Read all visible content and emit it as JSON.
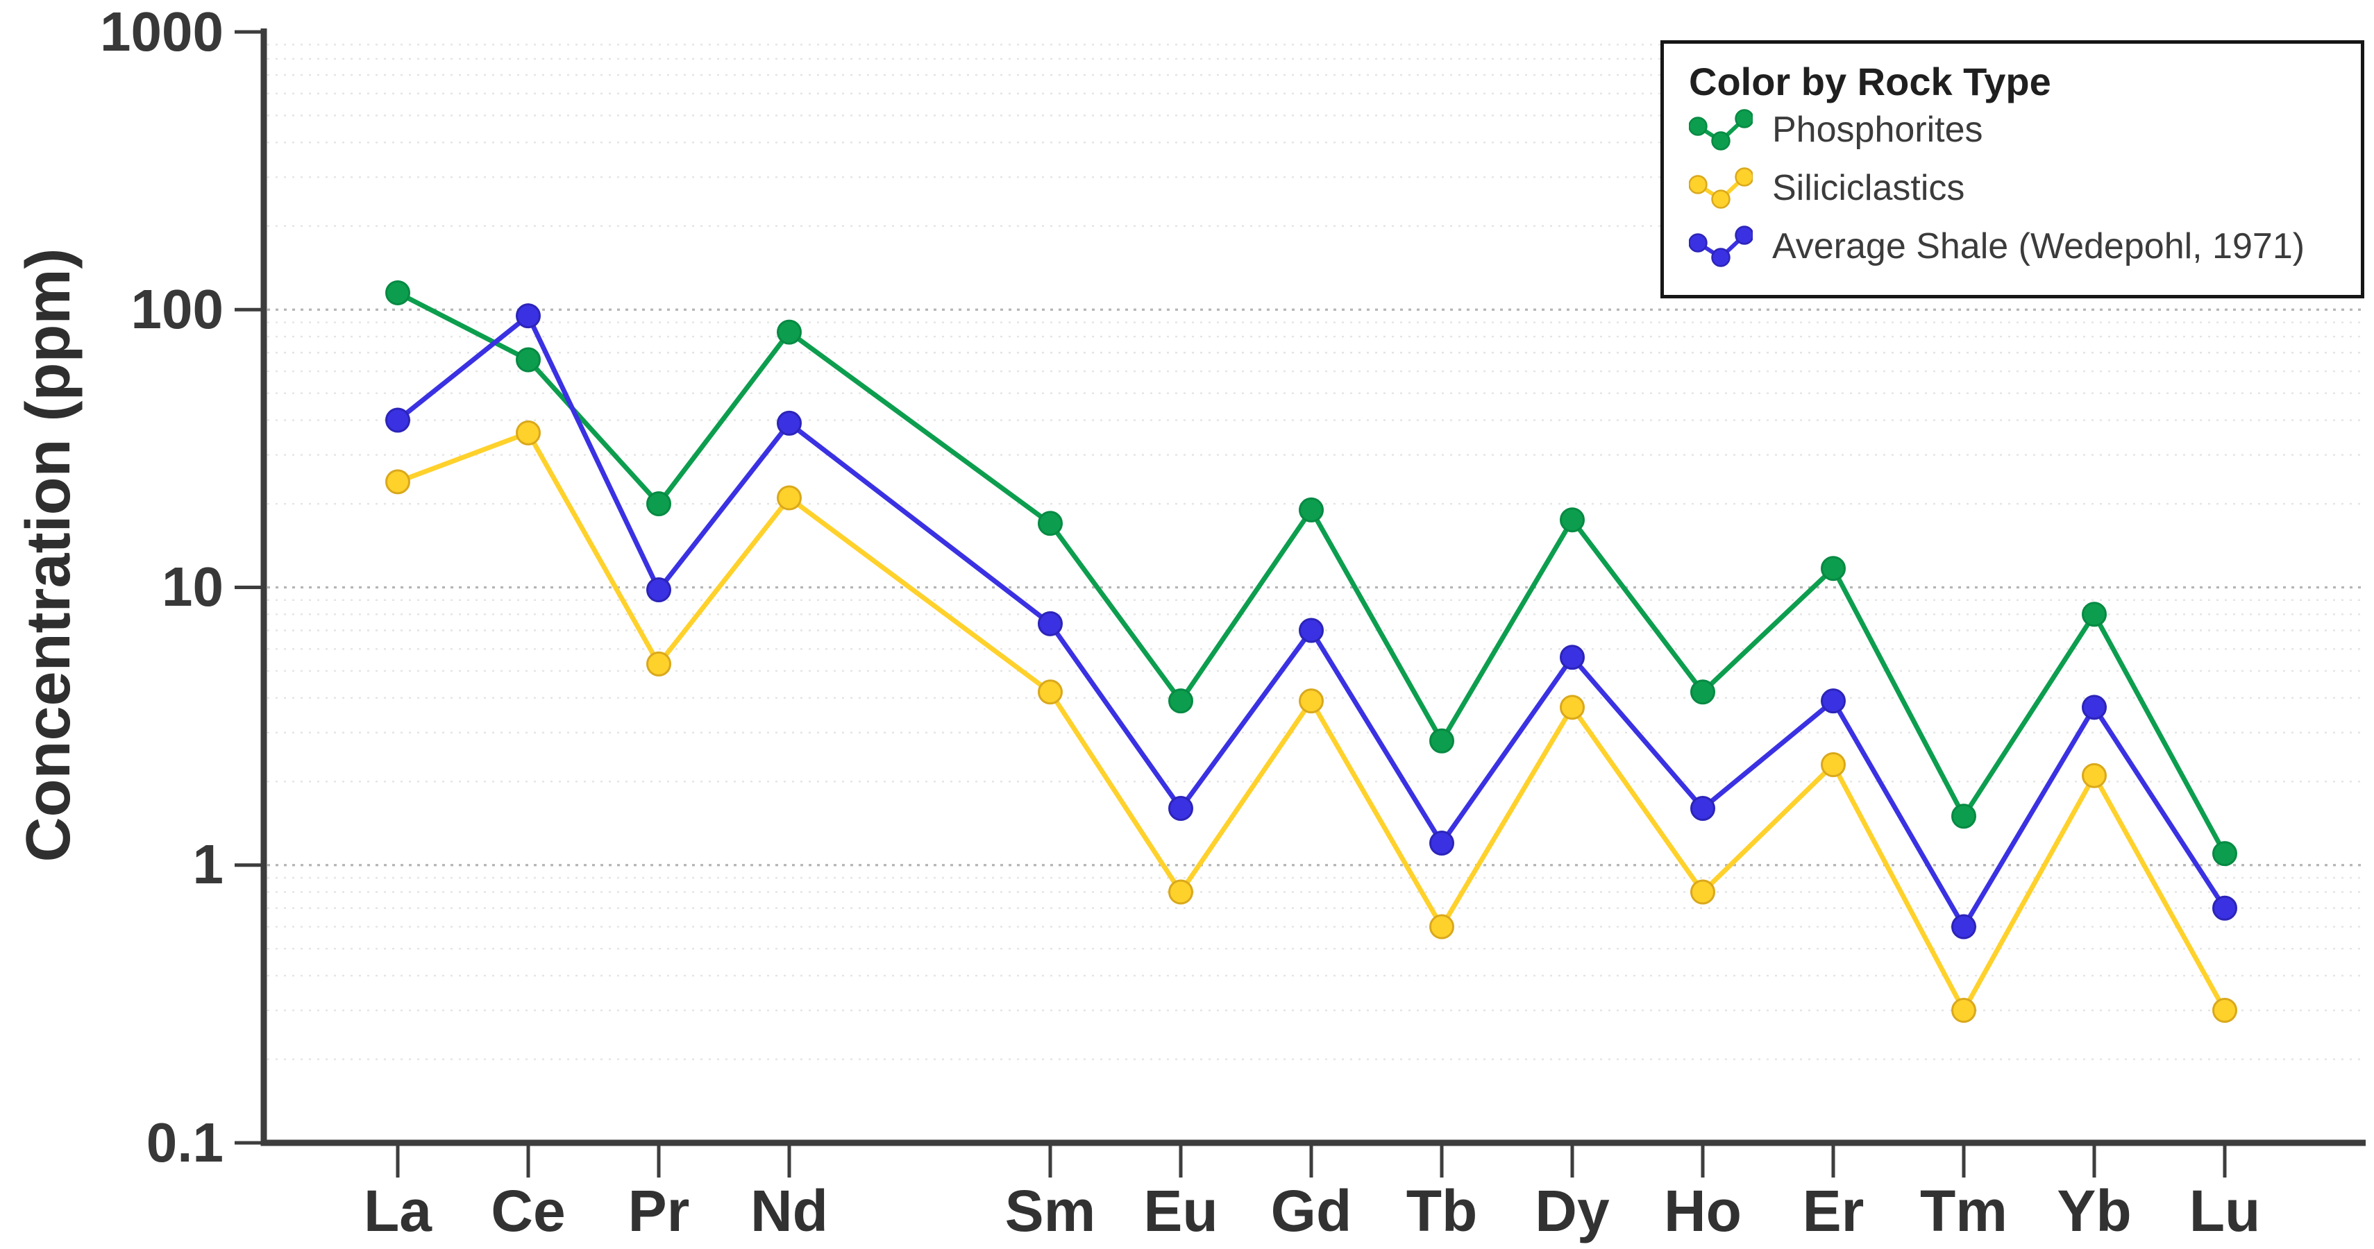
{
  "chart_data": {
    "type": "line",
    "title": "",
    "x_axis": {
      "categories": [
        "La",
        "Ce",
        "Pr",
        "Nd",
        "Sm",
        "Eu",
        "Gd",
        "Tb",
        "Dy",
        "Ho",
        "Er",
        "Tm",
        "Yb",
        "Lu"
      ],
      "slots": [
        0,
        1,
        2,
        3,
        5,
        6,
        7,
        8,
        9,
        10,
        11,
        12,
        13,
        14
      ],
      "total_slots": 15,
      "gap_slot_index": 4
    },
    "y_axis": {
      "label": "Concentration (ppm)",
      "scale": "log",
      "range": [
        0.1,
        1000
      ],
      "tick_labels": [
        "1000",
        "100",
        "10",
        "1",
        "0.1"
      ],
      "tick_values": [
        1000,
        100,
        10,
        1,
        0.1
      ]
    },
    "grid": {
      "minor": "dotted",
      "major": "dotted",
      "gridlines_on": true
    },
    "legend": {
      "title": "Color by Rock Type",
      "position": "top-right"
    },
    "style": {
      "background": "#FFFFFF",
      "axis_color": "#3D3D3D",
      "tick_text_color": "#383838",
      "grid_minor_color": "#E4E4E4",
      "grid_major_color": "#B5B5B5"
    },
    "series": [
      {
        "name": "Phosphorites",
        "color": "#0C9E4E",
        "marker_stroke": "#078A43",
        "values": [
          115,
          66,
          20,
          83,
          17,
          3.9,
          19,
          2.8,
          17.5,
          4.2,
          11.7,
          1.5,
          8,
          1.1
        ]
      },
      {
        "name": "Siliciclastics",
        "color": "#FFD12B",
        "marker_stroke": "#D9A81C",
        "values": [
          24,
          36,
          5.3,
          21,
          4.2,
          0.8,
          3.9,
          0.6,
          3.7,
          0.8,
          2.3,
          0.3,
          2.1,
          0.3
        ]
      },
      {
        "name": "Average Shale (Wedepohl, 1971)",
        "color": "#3A31E3",
        "marker_stroke": "#2C24B8",
        "values": [
          40,
          95,
          9.8,
          39,
          7.4,
          1.6,
          7,
          1.2,
          5.6,
          1.6,
          3.9,
          0.6,
          3.7,
          0.7
        ]
      }
    ]
  }
}
